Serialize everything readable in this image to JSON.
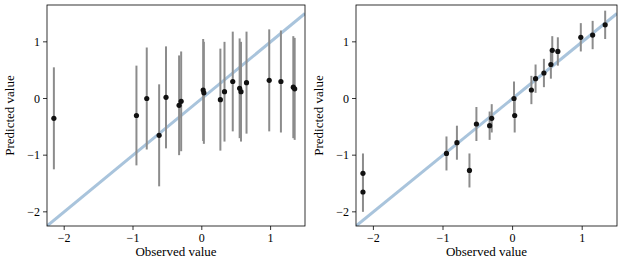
{
  "chart_data": [
    {
      "type": "scatter",
      "x_label": "Observed value",
      "y_label": "Predicted value",
      "color": "#111111",
      "marker": "circle",
      "x": [
        -2.15,
        -0.95,
        -0.8,
        -0.62,
        -0.52,
        -0.33,
        -0.3,
        0.02,
        0.03,
        0.27,
        0.33,
        0.45,
        0.55,
        0.57,
        0.65,
        0.98,
        1.15,
        1.33,
        1.35
      ],
      "values": [
        -0.35,
        -0.3,
        0.0,
        -0.65,
        0.02,
        -0.12,
        -0.05,
        0.15,
        0.1,
        -0.02,
        0.12,
        0.3,
        0.18,
        0.12,
        0.28,
        0.32,
        0.3,
        0.2,
        0.17
      ],
      "errors": [
        0.9,
        0.88,
        0.9,
        0.9,
        0.9,
        0.88,
        0.88,
        0.9,
        0.9,
        0.9,
        0.88,
        0.88,
        0.88,
        0.88,
        0.9,
        0.9,
        0.9,
        0.9,
        0.9
      ],
      "xlim": [
        -2.25,
        1.5
      ],
      "ylim": [
        -2.25,
        1.65
      ],
      "xticks": [
        {
          "value": -2,
          "label": "−2"
        },
        {
          "value": -1,
          "label": "−1"
        },
        0,
        1
      ],
      "yticks": [
        {
          "value": -2,
          "label": "−2"
        },
        {
          "value": -1,
          "label": "−1"
        },
        0,
        1
      ]
    },
    {
      "type": "scatter",
      "x_label": "Observed value",
      "y_label": "Predicted value",
      "color": "#111111",
      "marker": "circle",
      "x": [
        -2.15,
        -2.15,
        -0.95,
        -0.8,
        -0.62,
        -0.52,
        -0.33,
        -0.3,
        0.02,
        0.03,
        0.27,
        0.33,
        0.45,
        0.55,
        0.57,
        0.65,
        0.98,
        1.15,
        1.33
      ],
      "values": [
        -1.32,
        -1.65,
        -0.97,
        -0.78,
        -1.27,
        -0.45,
        -0.48,
        -0.35,
        0.0,
        -0.3,
        0.15,
        0.35,
        0.45,
        0.6,
        0.85,
        0.83,
        1.08,
        1.12,
        1.3
      ],
      "errors": [
        0.35,
        0.35,
        0.3,
        0.3,
        0.3,
        0.3,
        0.25,
        0.25,
        0.3,
        0.3,
        0.25,
        0.25,
        0.25,
        0.25,
        0.25,
        0.25,
        0.25,
        0.25,
        0.25
      ],
      "xlim": [
        -2.25,
        1.5
      ],
      "ylim": [
        -2.25,
        1.65
      ],
      "xticks": [
        {
          "value": -2,
          "label": "−2"
        },
        {
          "value": -1,
          "label": "−1"
        },
        0,
        1
      ],
      "yticks": [
        {
          "value": -2,
          "label": "−2"
        },
        {
          "value": -1,
          "label": "−1"
        },
        0,
        1
      ]
    }
  ]
}
